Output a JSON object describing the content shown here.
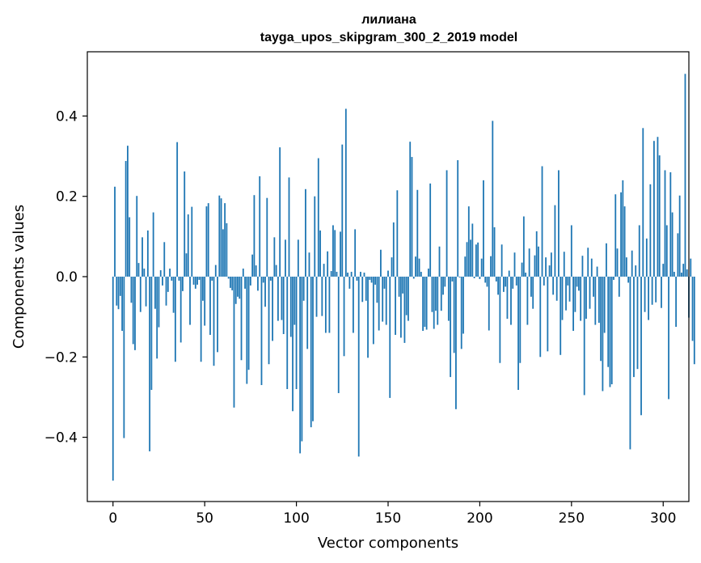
{
  "chart_data": {
    "type": "bar",
    "title": "лилиана",
    "subtitle": "tayga_upos_skipgram_300_2_2019 model",
    "xlabel": "Vector components",
    "ylabel": "Components values",
    "xlim": [
      -14,
      314
    ],
    "ylim": [
      -0.56,
      0.56
    ],
    "xticks": [
      0,
      50,
      100,
      150,
      200,
      250,
      300
    ],
    "yticks": [
      -0.4,
      -0.2,
      0.0,
      0.2,
      0.4
    ],
    "ytick_labels": [
      "−0.4",
      "−0.2",
      "0.0",
      "0.2",
      "0.4"
    ],
    "grid": false,
    "color": "#1f77b4",
    "values": [
      -0.508,
      0.224,
      -0.072,
      -0.081,
      -0.048,
      -0.135,
      -0.402,
      0.288,
      0.326,
      0.148,
      -0.065,
      -0.168,
      -0.183,
      0.201,
      0.034,
      -0.088,
      0.098,
      0.02,
      -0.074,
      0.115,
      -0.435,
      -0.282,
      0.16,
      -0.08,
      -0.204,
      -0.126,
      0.016,
      -0.022,
      0.086,
      -0.072,
      -0.038,
      0.02,
      -0.01,
      -0.09,
      -0.212,
      0.335,
      -0.01,
      -0.164,
      -0.036,
      0.262,
      0.058,
      0.155,
      -0.12,
      0.174,
      -0.02,
      -0.03,
      -0.02,
      -0.008,
      -0.212,
      -0.06,
      -0.122,
      0.175,
      0.183,
      -0.145,
      -0.01,
      -0.222,
      0.029,
      -0.188,
      0.202,
      0.195,
      0.118,
      0.183,
      0.133,
      -0.005,
      -0.028,
      -0.034,
      -0.326,
      -0.068,
      -0.05,
      -0.055,
      -0.208,
      0.02,
      -0.03,
      -0.267,
      -0.232,
      -0.022,
      0.055,
      0.203,
      0.028,
      -0.035,
      0.25,
      -0.27,
      -0.015,
      -0.075,
      0.196,
      -0.218,
      -0.01,
      -0.16,
      0.098,
      0.029,
      -0.11,
      0.322,
      -0.108,
      -0.143,
      0.092,
      -0.28,
      0.247,
      -0.15,
      -0.335,
      -0.12,
      -0.28,
      0.092,
      -0.44,
      -0.41,
      -0.06,
      0.218,
      -0.18,
      0.06,
      -0.375,
      -0.36,
      0.2,
      -0.1,
      0.295,
      0.115,
      -0.098,
      0.032,
      -0.14,
      0.063,
      -0.14,
      0.014,
      0.128,
      0.116,
      0.012,
      -0.29,
      0.112,
      0.329,
      -0.198,
      0.418,
      0.01,
      -0.03,
      0.012,
      -0.14,
      0.118,
      -0.01,
      -0.448,
      0.012,
      -0.063,
      0.01,
      -0.06,
      -0.202,
      -0.008,
      -0.015,
      -0.168,
      -0.02,
      -0.065,
      -0.134,
      0.067,
      -0.112,
      -0.03,
      -0.12,
      0.015,
      -0.302,
      0.048,
      0.135,
      -0.145,
      0.215,
      -0.05,
      -0.152,
      -0.042,
      -0.165,
      -0.096,
      -0.11,
      0.336,
      0.298,
      -0.005,
      0.05,
      0.216,
      0.045,
      0.012,
      -0.135,
      -0.125,
      -0.132,
      0.02,
      0.232,
      -0.088,
      -0.13,
      -0.085,
      -0.12,
      0.075,
      -0.085,
      -0.045,
      -0.025,
      0.265,
      -0.11,
      -0.25,
      -0.012,
      -0.19,
      -0.33,
      0.29,
      -0.002,
      -0.18,
      -0.142,
      0.05,
      0.086,
      0.175,
      0.092,
      0.132,
      -0.004,
      0.08,
      0.085,
      -0.006,
      0.045,
      0.24,
      -0.015,
      -0.025,
      -0.134,
      0.051,
      0.388,
      0.123,
      -0.012,
      -0.045,
      -0.215,
      0.08,
      -0.038,
      -0.025,
      -0.105,
      0.015,
      -0.12,
      -0.03,
      0.06,
      -0.022,
      -0.282,
      -0.215,
      0.035,
      0.15,
      0.01,
      -0.12,
      0.07,
      -0.05,
      -0.08,
      0.053,
      0.113,
      0.075,
      -0.2,
      0.275,
      -0.022,
      0.048,
      -0.186,
      0.028,
      0.06,
      -0.045,
      0.178,
      -0.06,
      0.265,
      -0.195,
      -0.108,
      0.062,
      -0.084,
      -0.022,
      -0.062,
      0.128,
      -0.135,
      -0.088,
      -0.025,
      -0.035,
      -0.11,
      0.052,
      -0.295,
      -0.105,
      0.072,
      -0.08,
      0.045,
      -0.05,
      -0.12,
      0.025,
      -0.115,
      -0.21,
      -0.285,
      -0.14,
      0.083,
      -0.225,
      -0.275,
      -0.268,
      -0.008,
      0.205,
      0.07,
      -0.05,
      0.21,
      0.24,
      0.175,
      0.048,
      -0.015,
      -0.43,
      0.065,
      -0.25,
      0.028,
      -0.23,
      0.128,
      -0.345,
      0.37,
      -0.088,
      0.095,
      -0.108,
      0.23,
      -0.07,
      0.338,
      -0.064,
      0.348,
      0.302,
      -0.078,
      0.032,
      0.265,
      0.128,
      -0.305,
      0.26,
      0.16,
      0.012,
      -0.125,
      0.108,
      0.202,
      0.01,
      0.032,
      0.505,
      0.018,
      -0.102,
      0.045,
      -0.16,
      -0.218
    ]
  }
}
